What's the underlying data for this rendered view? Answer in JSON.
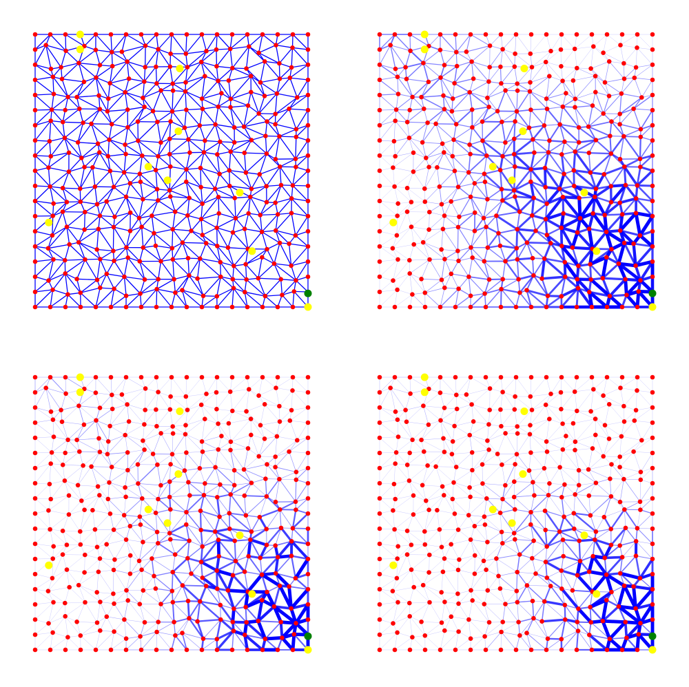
{
  "figure": {
    "panels": [
      {
        "id": "panel-1",
        "style": "uniform"
      },
      {
        "id": "panel-2",
        "style": "weighted"
      },
      {
        "id": "panel-3",
        "style": "weighted"
      },
      {
        "id": "panel-4",
        "style": "weighted"
      }
    ]
  },
  "colors": {
    "node": "#ff0000",
    "edge": "#0000ff",
    "source": "#ffff00",
    "sink": "#008000",
    "background": "#ffffff"
  },
  "nodes": {
    "sources": [
      "source-1",
      "source-2",
      "source-3",
      "source-4",
      "source-5",
      "source-6",
      "source-7",
      "source-8",
      "source-9",
      "source-10"
    ],
    "sinks": [
      "sink-1"
    ]
  }
}
